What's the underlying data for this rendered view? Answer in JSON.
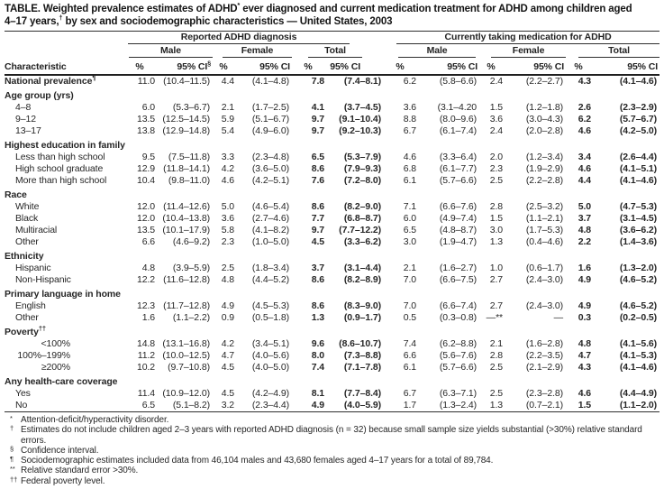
{
  "palette": {
    "text": "#262626",
    "title": "#141414",
    "rule": "#2e2e2e",
    "background": "#ffffff"
  },
  "title": {
    "line1": [
      {
        "text": "TABLE. Weighted prevalence estimates of ADHD"
      },
      {
        "text": "*",
        "sup": true
      },
      {
        "text": " ever diagnosed and current medication treatment for ADHD among children aged"
      }
    ],
    "line2": [
      {
        "text": "4–17 years,"
      },
      {
        "text": "†",
        "sup": true
      },
      {
        "text": " by sex and sociodemographic characteristics — United States, 2003"
      }
    ]
  },
  "table": {
    "row_header": "Characteristic",
    "groups": [
      {
        "label": "Reported ADHD diagnosis"
      },
      {
        "label": "Currently taking medication for ADHD"
      }
    ],
    "subgroups": [
      "Male",
      "Female",
      "Total"
    ],
    "measures": {
      "pct": "%",
      "ci": "95% CI",
      "ci_sup": "§"
    },
    "rows": [
      {
        "label": "National prevalence",
        "sup": "¶",
        "bold": true,
        "cells": [
          "11.0",
          "(10.4–11.5)",
          "4.4",
          "(4.1–4.8)",
          "7.8",
          "(7.4–8.1)",
          "6.2",
          "(5.8–6.6)",
          "2.4",
          "(2.2–2.7)",
          "4.3",
          "(4.1–4.6)"
        ]
      },
      {
        "label": "Age group (yrs)",
        "section": true
      },
      {
        "label": "4–8",
        "indent": "item",
        "cells": [
          "6.0",
          "(5.3–6.7)",
          "2.1",
          "(1.7–2.5)",
          "4.1",
          "(3.7–4.5)",
          "3.6",
          "(3.1–4.20",
          "1.5",
          "(1.2–1.8)",
          "2.6",
          "(2.3–2.9)"
        ]
      },
      {
        "label": "9–12",
        "indent": "item",
        "cells": [
          "13.5",
          "(12.5–14.5)",
          "5.9",
          "(5.1–6.7)",
          "9.7",
          "(9.1–10.4)",
          "8.8",
          "(8.0–9.6)",
          "3.6",
          "(3.0–4.3)",
          "6.2",
          "(5.7–6.7)"
        ]
      },
      {
        "label": "13–17",
        "indent": "item",
        "cells": [
          "13.8",
          "(12.9–14.8)",
          "5.4",
          "(4.9–6.0)",
          "9.7",
          "(9.2–10.3)",
          "6.7",
          "(6.1–7.4)",
          "2.4",
          "(2.0–2.8)",
          "4.6",
          "(4.2–5.0)"
        ]
      },
      {
        "label": "Highest education in family",
        "section": true
      },
      {
        "label": "Less than high school",
        "indent": "item",
        "cells": [
          "9.5",
          "(7.5–11.8)",
          "3.3",
          "(2.3–4.8)",
          "6.5",
          "(5.3–7.9)",
          "4.6",
          "(3.3–6.4)",
          "2.0",
          "(1.2–3.4)",
          "3.4",
          "(2.6–4.4)"
        ]
      },
      {
        "label": "High school graduate",
        "indent": "item",
        "cells": [
          "12.9",
          "(11.8–14.1)",
          "4.2",
          "(3.6–5.0)",
          "8.6",
          "(7.9–9.3)",
          "6.8",
          "(6.1–7.7)",
          "2.3",
          "(1.9–2.9)",
          "4.6",
          "(4.1–5.1)"
        ]
      },
      {
        "label": "More than high school",
        "indent": "item",
        "cells": [
          "10.4",
          "(9.8–11.0)",
          "4.6",
          "(4.2–5.1)",
          "7.6",
          "(7.2–8.0)",
          "6.1",
          "(5.7–6.6)",
          "2.5",
          "(2.2–2.8)",
          "4.4",
          "(4.1–4.6)"
        ]
      },
      {
        "label": "Race",
        "section": true
      },
      {
        "label": "White",
        "indent": "item",
        "cells": [
          "12.0",
          "(11.4–12.6)",
          "5.0",
          "(4.6–5.4)",
          "8.6",
          "(8.2–9.0)",
          "7.1",
          "(6.6–7.6)",
          "2.8",
          "(2.5–3.2)",
          "5.0",
          "(4.7–5.3)"
        ]
      },
      {
        "label": "Black",
        "indent": "item",
        "cells": [
          "12.0",
          "(10.4–13.8)",
          "3.6",
          "(2.7–4.6)",
          "7.7",
          "(6.8–8.7)",
          "6.0",
          "(4.9–7.4)",
          "1.5",
          "(1.1–2.1)",
          "3.7",
          "(3.1–4.5)"
        ]
      },
      {
        "label": "Multiracial",
        "indent": "item",
        "cells": [
          "13.5",
          "(10.1–17.9)",
          "5.8",
          "(4.1–8.2)",
          "9.7",
          "(7.7–12.2)",
          "6.5",
          "(4.8–8.7)",
          "3.0",
          "(1.7–5.3)",
          "4.8",
          "(3.6–6.2)"
        ]
      },
      {
        "label": "Other",
        "indent": "item",
        "cells": [
          "6.6",
          "(4.6–9.2)",
          "2.3",
          "(1.0–5.0)",
          "4.5",
          "(3.3–6.2)",
          "3.0",
          "(1.9–4.7)",
          "1.3",
          "(0.4–4.6)",
          "2.2",
          "(1.4–3.6)"
        ]
      },
      {
        "label": "Ethnicity",
        "section": true
      },
      {
        "label": "Hispanic",
        "indent": "item",
        "cells": [
          "4.8",
          "(3.9–5.9)",
          "2.5",
          "(1.8–3.4)",
          "3.7",
          "(3.1–4.4)",
          "2.1",
          "(1.6–2.7)",
          "1.0",
          "(0.6–1.7)",
          "1.6",
          "(1.3–2.0)"
        ]
      },
      {
        "label": "Non-Hispanic",
        "indent": "item",
        "cells": [
          "12.2",
          "(11.6–12.8)",
          "4.8",
          "(4.4–5.2)",
          "8.6",
          "(8.2–8.9)",
          "7.0",
          "(6.6–7.5)",
          "2.7",
          "(2.4–3.0)",
          "4.9",
          "(4.6–5.2)"
        ]
      },
      {
        "label": "Primary language in home",
        "section": true
      },
      {
        "label": "English",
        "indent": "item",
        "cells": [
          "12.3",
          "(11.7–12.8)",
          "4.9",
          "(4.5–5.3)",
          "8.6",
          "(8.3–9.0)",
          "7.0",
          "(6.6–7.4)",
          "2.7",
          "(2.4–3.0)",
          "4.9",
          "(4.6–5.2)"
        ]
      },
      {
        "label": "Other",
        "indent": "item",
        "cells": [
          "1.6",
          "(1.1–2.2)",
          "0.9",
          "(0.5–1.8)",
          "1.3",
          "(0.9–1.7)",
          "0.5",
          "(0.3–0.8)",
          "—**",
          "—",
          "0.3",
          "(0.2–0.5)"
        ]
      },
      {
        "label": "Poverty",
        "sup": "††",
        "section": true
      },
      {
        "label": "<100%",
        "indent": "right",
        "cells": [
          "14.8",
          "(13.1–16.8)",
          "4.2",
          "(3.4–5.1)",
          "9.6",
          "(8.6–10.7)",
          "7.4",
          "(6.2–8.8)",
          "2.1",
          "(1.6–2.8)",
          "4.8",
          "(4.1–5.6)"
        ]
      },
      {
        "label": "100%–199%",
        "indent": "right",
        "cells": [
          "11.2",
          "(10.0–12.5)",
          "4.7",
          "(4.0–5.6)",
          "8.0",
          "(7.3–8.8)",
          "6.6",
          "(5.6–7.6)",
          "2.8",
          "(2.2–3.5)",
          "4.7",
          "(4.1–5.3)"
        ]
      },
      {
        "label": "≥200%",
        "indent": "right",
        "cells": [
          "10.2",
          "(9.7–10.8)",
          "4.5",
          "(4.0–5.0)",
          "7.4",
          "(7.1–7.8)",
          "6.1",
          "(5.7–6.6)",
          "2.5",
          "(2.1–2.9)",
          "4.3",
          "(4.1–4.6)"
        ]
      },
      {
        "label": "Any health-care coverage",
        "section": true
      },
      {
        "label": "Yes",
        "indent": "item",
        "cells": [
          "11.4",
          "(10.9–12.0)",
          "4.5",
          "(4.2–4.9)",
          "8.1",
          "(7.7–8.4)",
          "6.7",
          "(6.3–7.1)",
          "2.5",
          "(2.3–2.8)",
          "4.6",
          "(4.4–4.9)"
        ]
      },
      {
        "label": "No",
        "indent": "item",
        "cells": [
          "6.5",
          "(5.1–8.2)",
          "3.2",
          "(2.3–4.4)",
          "4.9",
          "(4.0–5.9)",
          "1.7",
          "(1.3–2.4)",
          "1.3",
          "(0.7–2.1)",
          "1.5",
          "(1.1–2.0)"
        ]
      }
    ]
  },
  "footnotes": [
    {
      "marker": "*",
      "text": "Attention-deficit/hyperactivity disorder."
    },
    {
      "marker": "†",
      "text": "Estimates do not include children aged 2–3 years with reported ADHD diagnosis (n = 32) because small sample size yields substantial (>30%) relative standard errors."
    },
    {
      "marker": "§",
      "text": "Confidence interval."
    },
    {
      "marker": "¶",
      "text": "Sociodemographic estimates included data from 46,104 males and 43,680 females aged 4–17 years for a total of 89,784."
    },
    {
      "marker": "**",
      "text": "Relative standard error >30%."
    },
    {
      "marker": "††",
      "text": "Federal poverty level."
    }
  ]
}
